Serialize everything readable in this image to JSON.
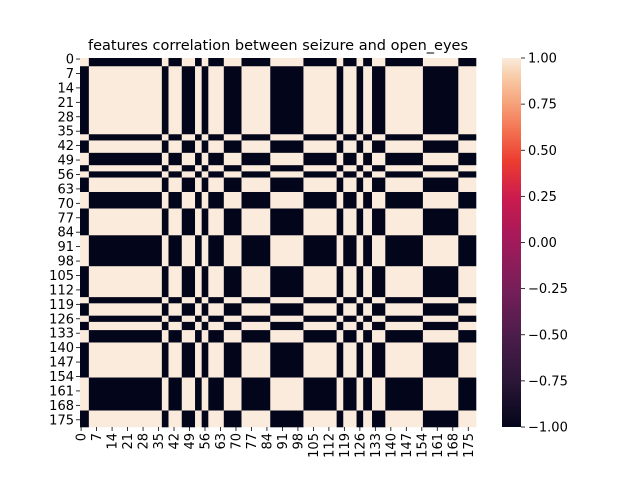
{
  "chart_data": {
    "type": "heatmap",
    "title": "features correlation between seizure  and open_eyes",
    "xlabel": "",
    "ylabel": "",
    "n": 179,
    "tick_labels": [
      "0",
      "7",
      "14",
      "21",
      "28",
      "35",
      "42",
      "49",
      "56",
      "63",
      "70",
      "77",
      "84",
      "91",
      "98",
      "105",
      "112",
      "119",
      "126",
      "133",
      "140",
      "147",
      "154",
      "161",
      "168",
      "175"
    ],
    "tick_step": 7,
    "value_range": [
      -1.0,
      1.0
    ],
    "colorbar": {
      "ticks": [
        1.0,
        0.75,
        0.5,
        0.25,
        0.0,
        -0.25,
        -0.5,
        -0.75,
        -1.0
      ],
      "tick_labels": [
        "1.00",
        "0.75",
        "0.50",
        "0.25",
        "0.00",
        "−0.25",
        "−0.50",
        "−0.75",
        "−1.00"
      ],
      "colormap": "rocket",
      "color_low": "#03051a",
      "color_high": "#faebdd"
    },
    "block_signs": {
      "note_values": "correlation values are +1 or -1; matrix[i][j] = sign[i] * sign[j]",
      "segments": [
        {
          "from": 0,
          "to": 3,
          "sign": -1
        },
        {
          "from": 4,
          "to": 36,
          "sign": 1
        },
        {
          "from": 37,
          "to": 39,
          "sign": -1
        },
        {
          "from": 40,
          "to": 45,
          "sign": 1
        },
        {
          "from": 46,
          "to": 51,
          "sign": -1
        },
        {
          "from": 52,
          "to": 54,
          "sign": 1
        },
        {
          "from": 55,
          "to": 57,
          "sign": -1
        },
        {
          "from": 58,
          "to": 64,
          "sign": 1
        },
        {
          "from": 65,
          "to": 72,
          "sign": -1
        },
        {
          "from": 73,
          "to": 85,
          "sign": 1
        },
        {
          "from": 86,
          "to": 100,
          "sign": -1
        },
        {
          "from": 101,
          "to": 115,
          "sign": 1
        },
        {
          "from": 116,
          "to": 118,
          "sign": -1
        },
        {
          "from": 119,
          "to": 124,
          "sign": 1
        },
        {
          "from": 125,
          "to": 127,
          "sign": -1
        },
        {
          "from": 128,
          "to": 131,
          "sign": 1
        },
        {
          "from": 132,
          "to": 137,
          "sign": -1
        },
        {
          "from": 138,
          "to": 154,
          "sign": 1
        },
        {
          "from": 155,
          "to": 170,
          "sign": -1
        },
        {
          "from": 171,
          "to": 178,
          "sign": 1
        }
      ]
    }
  }
}
